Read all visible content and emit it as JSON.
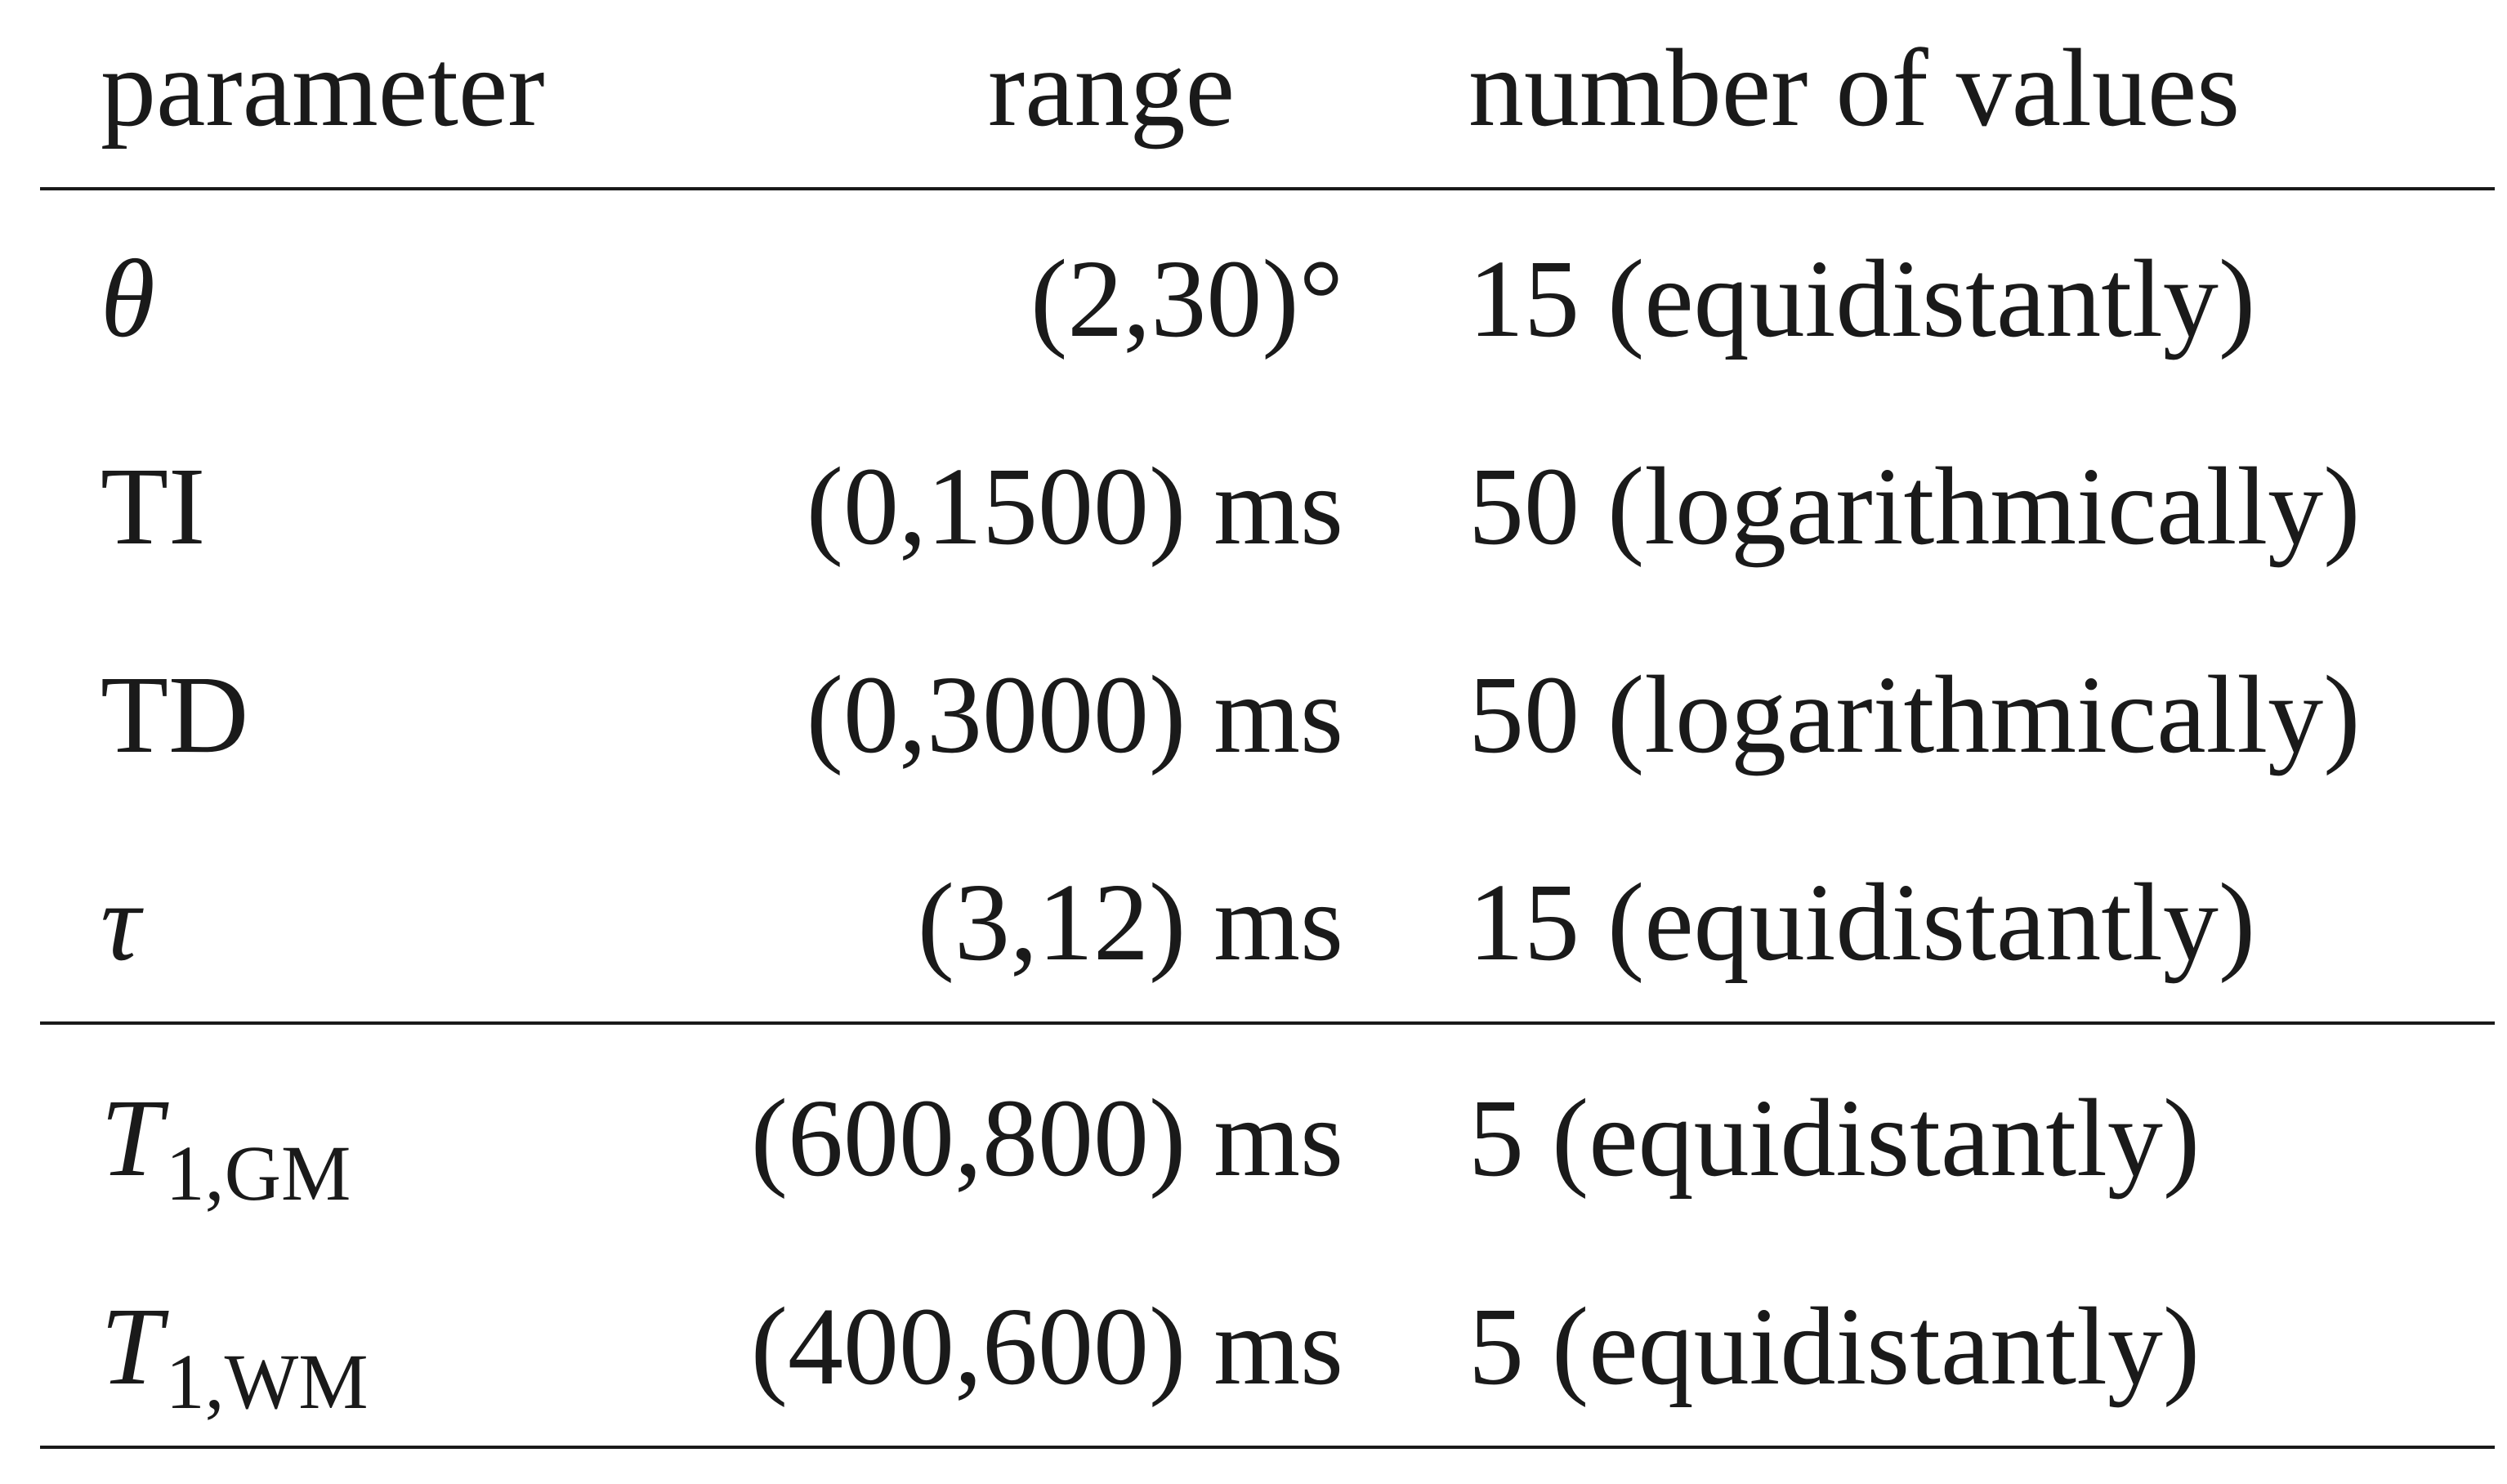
{
  "table": {
    "header": [
      "parameter",
      "range",
      "number of values"
    ],
    "rows": [
      {
        "parameter": "θ",
        "range": "(2,30)°",
        "count": "15 (equidistantly)"
      },
      {
        "parameter": "TI",
        "range": "(0,1500) ms",
        "count": "50 (logarithmically)"
      },
      {
        "parameter": "TD",
        "range": "(0,3000) ms",
        "count": "50 (logarithmically)"
      },
      {
        "parameter": "τ",
        "range": "(3,12) ms",
        "count": "15 (equidistantly)"
      },
      {
        "parameter": "T",
        "parameter_sub": "1,GM",
        "range": "(600,800) ms",
        "count": "5 (equidistantly)"
      },
      {
        "parameter": "T",
        "parameter_sub": "1,WM",
        "range": "(400,600) ms",
        "count": "5 (equidistantly)"
      }
    ]
  }
}
